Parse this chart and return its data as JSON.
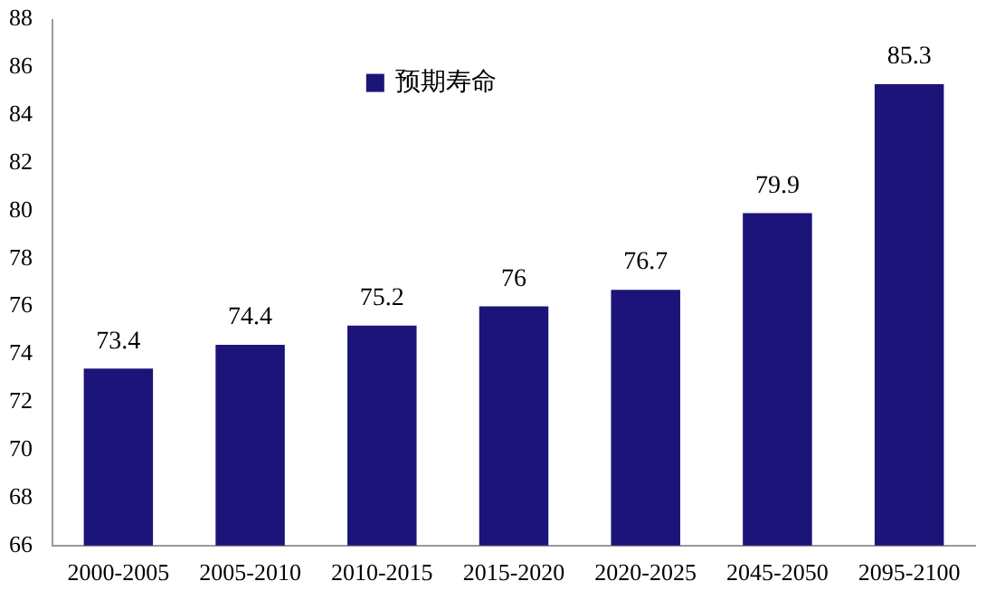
{
  "chart_data": {
    "type": "bar",
    "categories": [
      "2000-2005",
      "2005-2010",
      "2010-2015",
      "2015-2020",
      "2020-2025",
      "2045-2050",
      "2095-2100"
    ],
    "series": [
      {
        "name": "预期寿命",
        "color": "#1c1478",
        "values": [
          73.4,
          74.4,
          75.2,
          76,
          76.7,
          79.9,
          85.3
        ]
      }
    ],
    "ylim": [
      66,
      88
    ],
    "yticks": [
      66,
      68,
      70,
      72,
      74,
      76,
      78,
      80,
      82,
      84,
      86,
      88
    ],
    "grid": false,
    "legend": "top",
    "data_labels": true
  }
}
